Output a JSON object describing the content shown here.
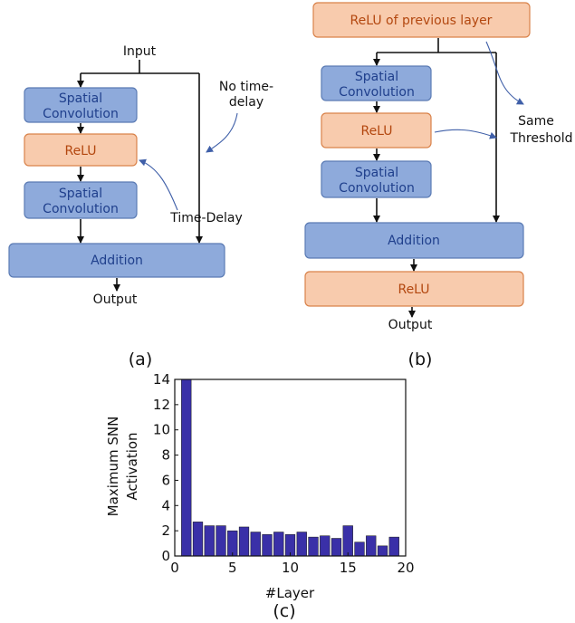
{
  "panel_a": {
    "input": "Input",
    "output": "Output",
    "spatial_conv_1": [
      "Spatial",
      "Convolution"
    ],
    "relu": "ReLU",
    "spatial_conv_2": [
      "Spatial",
      "Convolution"
    ],
    "addition": "Addition",
    "no_time_delay": [
      "No time-",
      "delay"
    ],
    "time_delay": "Time-Delay",
    "label": "(a)"
  },
  "panel_b": {
    "relu_prev": "ReLU of previous layer",
    "spatial_conv_1": [
      "Spatial",
      "Convolution"
    ],
    "relu": "ReLU",
    "spatial_conv_2": [
      "Spatial",
      "Convolution"
    ],
    "addition": "Addition",
    "relu_out": "ReLU",
    "output": "Output",
    "same_threshold": [
      "Same",
      "Threshold"
    ],
    "label": "(b)"
  },
  "panel_c_label": "(c)",
  "colors": {
    "blue_box": "#8eaadb",
    "orange_box": "#f8cbad",
    "bar": "#3a30a8"
  },
  "chart_data": {
    "type": "bar",
    "x": [
      1,
      2,
      3,
      4,
      5,
      6,
      7,
      8,
      9,
      10,
      11,
      12,
      13,
      14,
      15,
      16,
      17,
      18,
      19
    ],
    "values": [
      14.0,
      2.7,
      2.4,
      2.4,
      2.0,
      2.3,
      1.9,
      1.7,
      1.9,
      1.7,
      1.9,
      1.5,
      1.6,
      1.4,
      2.4,
      1.1,
      1.6,
      0.8,
      1.5
    ],
    "title": "",
    "xlabel": "#Layer",
    "ylabel": [
      "Maximum SNN",
      "Activation"
    ],
    "xlim": [
      0,
      20
    ],
    "ylim": [
      0,
      14
    ],
    "xticks": [
      "0",
      "5",
      "10",
      "15",
      "20"
    ],
    "yticks": [
      "0",
      "2",
      "4",
      "6",
      "8",
      "10",
      "12",
      "14"
    ],
    "grid": false
  }
}
